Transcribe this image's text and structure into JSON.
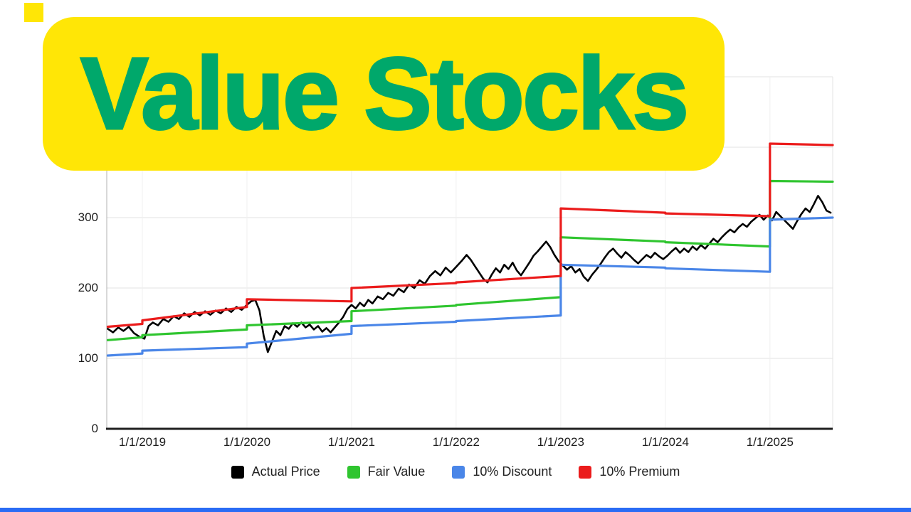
{
  "page": {
    "background": "#ffffff"
  },
  "banner": {
    "title": "Value Stocks",
    "bg_color": "#ffe606",
    "text_color": "#00a86b"
  },
  "decor": {
    "corner_square_color": "#ffe606",
    "bottom_bar_color": "#2a6cf5"
  },
  "chart_data": {
    "type": "line",
    "title": "",
    "xlabel": "",
    "ylabel": "",
    "grid": true,
    "legend_position": "bottom",
    "xlim": [
      2018.66,
      2025.6
    ],
    "ylim": [
      0,
      500
    ],
    "grid_step": 100,
    "x_tick_years": [
      2019,
      2020,
      2021,
      2022,
      2023,
      2024,
      2025
    ],
    "x_tick_labels": [
      "1/1/2019",
      "1/1/2020",
      "1/1/2021",
      "1/1/2022",
      "1/1/2023",
      "1/1/2024",
      "1/1/2025"
    ],
    "y_ticks": [
      0,
      100,
      200,
      300
    ],
    "y_tick_labels": [
      "0",
      "100",
      "200",
      "300"
    ],
    "series": [
      {
        "name": "Actual Price",
        "color": "#000000",
        "points": [
          [
            2018.67,
            142
          ],
          [
            2018.72,
            137
          ],
          [
            2018.77,
            144
          ],
          [
            2018.82,
            139
          ],
          [
            2018.87,
            145
          ],
          [
            2018.92,
            136
          ],
          [
            2018.97,
            131
          ],
          [
            2019.02,
            128
          ],
          [
            2019.06,
            146
          ],
          [
            2019.1,
            151
          ],
          [
            2019.15,
            147
          ],
          [
            2019.2,
            156
          ],
          [
            2019.25,
            152
          ],
          [
            2019.3,
            160
          ],
          [
            2019.35,
            156
          ],
          [
            2019.4,
            164
          ],
          [
            2019.45,
            159
          ],
          [
            2019.5,
            166
          ],
          [
            2019.55,
            161
          ],
          [
            2019.6,
            167
          ],
          [
            2019.65,
            162
          ],
          [
            2019.7,
            168
          ],
          [
            2019.75,
            164
          ],
          [
            2019.8,
            171
          ],
          [
            2019.85,
            166
          ],
          [
            2019.9,
            173
          ],
          [
            2019.95,
            169
          ],
          [
            2020.0,
            176
          ],
          [
            2020.04,
            181
          ],
          [
            2020.08,
            183
          ],
          [
            2020.12,
            168
          ],
          [
            2020.16,
            132
          ],
          [
            2020.2,
            109
          ],
          [
            2020.24,
            124
          ],
          [
            2020.28,
            139
          ],
          [
            2020.32,
            133
          ],
          [
            2020.36,
            146
          ],
          [
            2020.4,
            142
          ],
          [
            2020.44,
            150
          ],
          [
            2020.48,
            145
          ],
          [
            2020.52,
            151
          ],
          [
            2020.56,
            144
          ],
          [
            2020.6,
            148
          ],
          [
            2020.64,
            141
          ],
          [
            2020.68,
            146
          ],
          [
            2020.72,
            138
          ],
          [
            2020.76,
            143
          ],
          [
            2020.8,
            137
          ],
          [
            2020.84,
            144
          ],
          [
            2020.88,
            151
          ],
          [
            2020.92,
            159
          ],
          [
            2020.96,
            170
          ],
          [
            2021.0,
            176
          ],
          [
            2021.04,
            171
          ],
          [
            2021.08,
            179
          ],
          [
            2021.12,
            174
          ],
          [
            2021.16,
            183
          ],
          [
            2021.2,
            178
          ],
          [
            2021.25,
            188
          ],
          [
            2021.3,
            184
          ],
          [
            2021.35,
            193
          ],
          [
            2021.4,
            189
          ],
          [
            2021.45,
            199
          ],
          [
            2021.5,
            194
          ],
          [
            2021.55,
            205
          ],
          [
            2021.6,
            200
          ],
          [
            2021.65,
            211
          ],
          [
            2021.7,
            206
          ],
          [
            2021.75,
            217
          ],
          [
            2021.8,
            224
          ],
          [
            2021.85,
            218
          ],
          [
            2021.9,
            229
          ],
          [
            2021.95,
            222
          ],
          [
            2022.0,
            230
          ],
          [
            2022.05,
            238
          ],
          [
            2022.1,
            247
          ],
          [
            2022.14,
            240
          ],
          [
            2022.18,
            231
          ],
          [
            2022.22,
            222
          ],
          [
            2022.26,
            213
          ],
          [
            2022.3,
            208
          ],
          [
            2022.34,
            219
          ],
          [
            2022.38,
            228
          ],
          [
            2022.42,
            222
          ],
          [
            2022.46,
            233
          ],
          [
            2022.5,
            227
          ],
          [
            2022.54,
            236
          ],
          [
            2022.58,
            225
          ],
          [
            2022.62,
            218
          ],
          [
            2022.66,
            227
          ],
          [
            2022.7,
            236
          ],
          [
            2022.74,
            246
          ],
          [
            2022.78,
            252
          ],
          [
            2022.82,
            259
          ],
          [
            2022.86,
            266
          ],
          [
            2022.9,
            258
          ],
          [
            2022.94,
            247
          ],
          [
            2022.98,
            238
          ],
          [
            2023.02,
            232
          ],
          [
            2023.06,
            226
          ],
          [
            2023.1,
            231
          ],
          [
            2023.14,
            222
          ],
          [
            2023.18,
            227
          ],
          [
            2023.22,
            216
          ],
          [
            2023.26,
            210
          ],
          [
            2023.3,
            219
          ],
          [
            2023.34,
            226
          ],
          [
            2023.38,
            234
          ],
          [
            2023.42,
            243
          ],
          [
            2023.46,
            251
          ],
          [
            2023.5,
            256
          ],
          [
            2023.54,
            249
          ],
          [
            2023.58,
            243
          ],
          [
            2023.62,
            251
          ],
          [
            2023.66,
            246
          ],
          [
            2023.7,
            240
          ],
          [
            2023.74,
            235
          ],
          [
            2023.78,
            241
          ],
          [
            2023.82,
            247
          ],
          [
            2023.86,
            243
          ],
          [
            2023.9,
            250
          ],
          [
            2023.94,
            245
          ],
          [
            2023.98,
            241
          ],
          [
            2024.02,
            246
          ],
          [
            2024.06,
            252
          ],
          [
            2024.1,
            257
          ],
          [
            2024.14,
            250
          ],
          [
            2024.18,
            256
          ],
          [
            2024.22,
            251
          ],
          [
            2024.26,
            259
          ],
          [
            2024.3,
            254
          ],
          [
            2024.34,
            261
          ],
          [
            2024.38,
            256
          ],
          [
            2024.42,
            263
          ],
          [
            2024.46,
            270
          ],
          [
            2024.5,
            265
          ],
          [
            2024.54,
            272
          ],
          [
            2024.58,
            278
          ],
          [
            2024.62,
            283
          ],
          [
            2024.66,
            279
          ],
          [
            2024.7,
            286
          ],
          [
            2024.74,
            291
          ],
          [
            2024.78,
            287
          ],
          [
            2024.82,
            294
          ],
          [
            2024.86,
            299
          ],
          [
            2024.9,
            304
          ],
          [
            2024.94,
            297
          ],
          [
            2024.98,
            303
          ],
          [
            2025.02,
            296
          ],
          [
            2025.06,
            308
          ],
          [
            2025.1,
            302
          ],
          [
            2025.14,
            296
          ],
          [
            2025.18,
            290
          ],
          [
            2025.22,
            284
          ],
          [
            2025.26,
            295
          ],
          [
            2025.3,
            305
          ],
          [
            2025.34,
            313
          ],
          [
            2025.38,
            308
          ],
          [
            2025.42,
            319
          ],
          [
            2025.46,
            331
          ],
          [
            2025.5,
            322
          ],
          [
            2025.54,
            310
          ],
          [
            2025.58,
            307
          ]
        ]
      },
      {
        "name": "Fair Value",
        "color": "#2fc52f",
        "points": [
          [
            2018.67,
            126
          ],
          [
            2019.0,
            130
          ],
          [
            2019.0,
            133
          ],
          [
            2020.0,
            141
          ],
          [
            2020.0,
            147
          ],
          [
            2021.0,
            153
          ],
          [
            2021.0,
            167
          ],
          [
            2022.0,
            175
          ],
          [
            2022.0,
            176
          ],
          [
            2023.0,
            187
          ],
          [
            2023.0,
            272
          ],
          [
            2024.0,
            266
          ],
          [
            2024.0,
            265
          ],
          [
            2025.0,
            259
          ],
          [
            2025.0,
            352
          ],
          [
            2025.6,
            351
          ]
        ]
      },
      {
        "name": "10% Discount",
        "color": "#4a86e8",
        "points": [
          [
            2018.67,
            104
          ],
          [
            2019.0,
            107
          ],
          [
            2019.0,
            111
          ],
          [
            2020.0,
            116
          ],
          [
            2020.0,
            121
          ],
          [
            2021.0,
            135
          ],
          [
            2021.0,
            146
          ],
          [
            2022.0,
            152
          ],
          [
            2022.0,
            153
          ],
          [
            2023.0,
            161
          ],
          [
            2023.0,
            233
          ],
          [
            2024.0,
            229
          ],
          [
            2024.0,
            228
          ],
          [
            2025.0,
            223
          ],
          [
            2025.0,
            297
          ],
          [
            2025.6,
            300
          ]
        ]
      },
      {
        "name": "10% Premium",
        "color": "#eb1c1c",
        "points": [
          [
            2018.67,
            145
          ],
          [
            2019.0,
            149
          ],
          [
            2019.0,
            154
          ],
          [
            2020.0,
            173
          ],
          [
            2020.0,
            184
          ],
          [
            2021.0,
            181
          ],
          [
            2021.0,
            200
          ],
          [
            2022.0,
            207
          ],
          [
            2022.0,
            208
          ],
          [
            2023.0,
            217
          ],
          [
            2023.0,
            313
          ],
          [
            2024.0,
            307
          ],
          [
            2024.0,
            306
          ],
          [
            2025.0,
            302
          ],
          [
            2025.0,
            405
          ],
          [
            2025.6,
            403
          ]
        ]
      }
    ]
  }
}
